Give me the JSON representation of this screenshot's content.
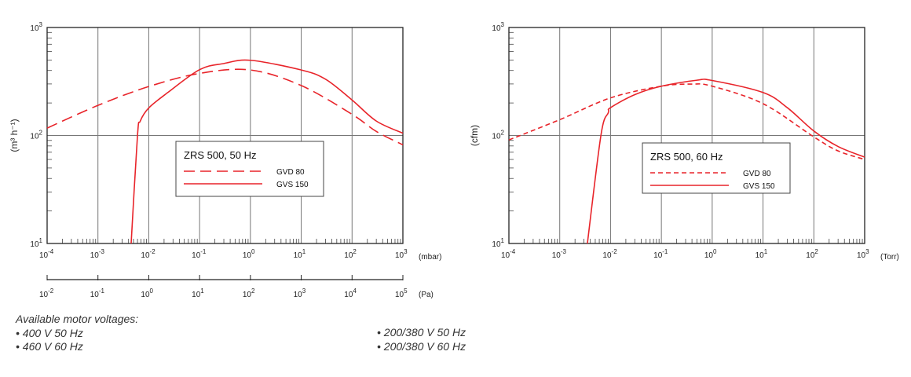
{
  "colors": {
    "curve": "#e8242a",
    "grid": "#777777",
    "axis": "#222222"
  },
  "chart_data": [
    {
      "type": "line",
      "title": "ZRS 500, 50 Hz",
      "xscale": "log",
      "yscale": "log",
      "xlim": [
        0.0001,
        1000
      ],
      "ylim": [
        10,
        1000
      ],
      "xunit": "(mbar)",
      "ylabel": "(m³ h⁻¹)",
      "x_tick_exponents": [
        "-4",
        "-3",
        "-2",
        "-1",
        "0",
        "1",
        "2",
        "3"
      ],
      "y_tick_exponents": [
        "1",
        "2",
        "3"
      ],
      "secondary_x": {
        "unit": "(Pa)",
        "tick_exponents": [
          "-2",
          "-1",
          "0",
          "1",
          "2",
          "3",
          "4",
          "5"
        ]
      },
      "grid": "vertical at decades, horizontal at 10^2",
      "legend_placement": "center",
      "series": [
        {
          "name": "GVD 80",
          "style": "long-dash",
          "x": [
            0.0001,
            0.001,
            0.01,
            0.1,
            1,
            10,
            100,
            300,
            1000
          ],
          "y": [
            117,
            190,
            284,
            376,
            404,
            290,
            157,
            109,
            82
          ]
        },
        {
          "name": "GVS 150",
          "style": "solid",
          "x": [
            0.0045,
            0.006,
            0.0068,
            0.01,
            0.024,
            0.1,
            0.3,
            1,
            10,
            30,
            100,
            300,
            1000
          ],
          "y": [
            10,
            100,
            136,
            180,
            251,
            407,
            464,
            497,
            404,
            332,
            213,
            136,
            105
          ]
        }
      ]
    },
    {
      "type": "line",
      "title": "ZRS 500, 60 Hz",
      "xscale": "log",
      "yscale": "log",
      "xlim": [
        0.0001,
        1000
      ],
      "ylim": [
        10,
        1000
      ],
      "xunit": "(Torr)",
      "ylabel": "(cfm)",
      "x_tick_exponents": [
        "-4",
        "-3",
        "-2",
        "-1",
        "0",
        "1",
        "2",
        "3"
      ],
      "y_tick_exponents": [
        "1",
        "2",
        "3"
      ],
      "grid": "vertical at decades, horizontal at 10^2",
      "legend_placement": "center",
      "series": [
        {
          "name": "GVD 80",
          "style": "short-dash",
          "x": [
            0.0001,
            0.001,
            0.01,
            0.1,
            0.4,
            1,
            10,
            100,
            300,
            1000
          ],
          "y": [
            91,
            140,
            223,
            286,
            299,
            286,
            197,
            97,
            72,
            60
          ]
        },
        {
          "name": "GVS 150",
          "style": "solid",
          "x": [
            0.0035,
            0.0065,
            0.009,
            0.01,
            0.03,
            0.1,
            0.5,
            1,
            10,
            30,
            100,
            300,
            1000
          ],
          "y": [
            10,
            102,
            162,
            181,
            239,
            286,
            325,
            323,
            250,
            181,
            110,
            79,
            63
          ]
        }
      ]
    }
  ],
  "notes": {
    "heading": "Available motor voltages:",
    "items_left": [
      "•  400 V 50 Hz",
      "•  460 V 60 Hz"
    ],
    "items_right": [
      "•  200/380 V 50 Hz",
      "•  200/380 V 60 Hz"
    ]
  }
}
